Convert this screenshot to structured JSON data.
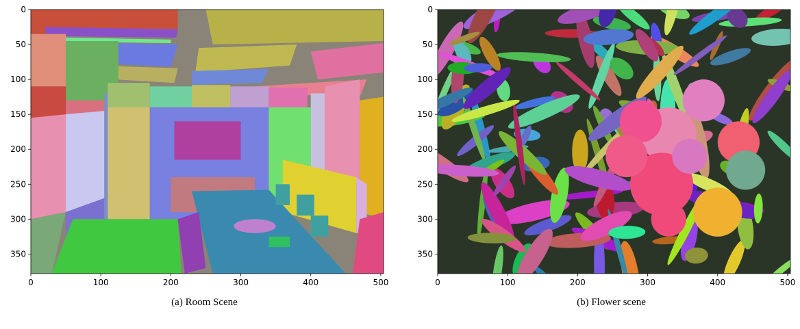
{
  "chart_data": [
    {
      "type": "image",
      "caption": "(a) Room Scene",
      "xlim": [
        0,
        504
      ],
      "ylim": [
        378,
        0
      ],
      "xticks": [
        0,
        100,
        200,
        300,
        400,
        500
      ],
      "yticks": [
        0,
        50,
        100,
        150,
        200,
        250,
        300,
        350
      ]
    },
    {
      "type": "image",
      "caption": "(b) Flower scene",
      "xlim": [
        0,
        504
      ],
      "ylim": [
        378,
        0
      ],
      "xticks": [
        0,
        100,
        200,
        300,
        400,
        500
      ],
      "yticks": [
        0,
        50,
        100,
        150,
        200,
        250,
        300,
        350
      ]
    }
  ]
}
